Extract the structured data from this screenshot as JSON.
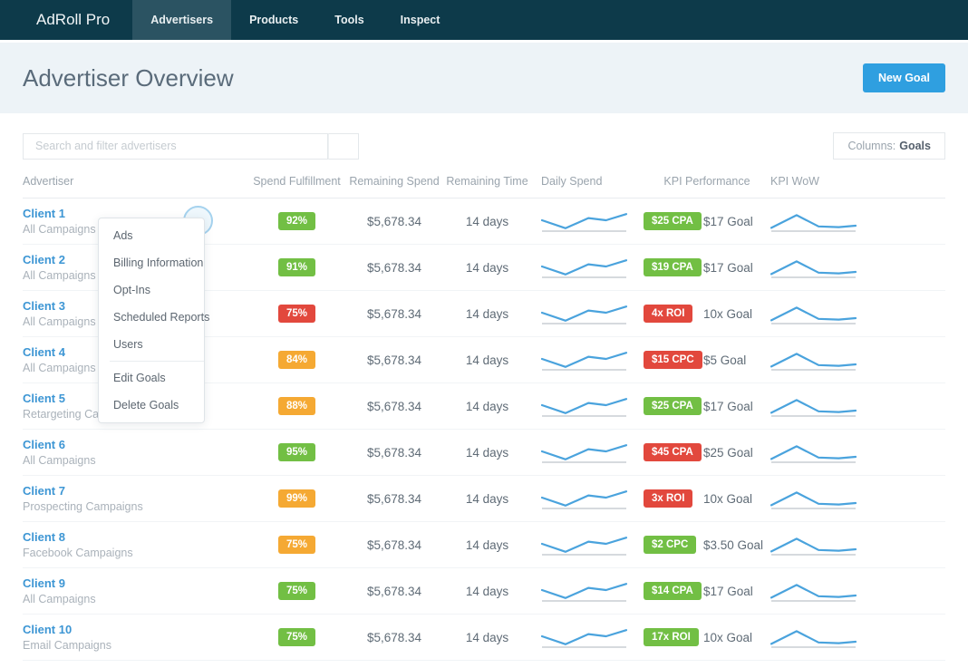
{
  "nav": {
    "brand": "AdRoll Pro",
    "items": [
      {
        "label": "Advertisers",
        "active": true
      },
      {
        "label": "Products",
        "active": false
      },
      {
        "label": "Tools",
        "active": false
      },
      {
        "label": "Inspect",
        "active": false
      }
    ]
  },
  "header": {
    "title": "Advertiser Overview",
    "new_goal_button": "New Goal"
  },
  "toolbar": {
    "search_placeholder": "Search and filter advertisers",
    "columns_label": "Columns:",
    "columns_value": "Goals"
  },
  "table": {
    "headers": [
      "Advertiser",
      "Spend Fulfillment",
      "Remaining Spend",
      "Remaining Time",
      "Daily Spend",
      "KPI Performance",
      "KPI WoW"
    ],
    "rows": [
      {
        "client": "Client 1",
        "campaigns": "All Campaigns",
        "fulfillment": "92%",
        "fulfillment_color": "green",
        "remaining_spend": "$5,678.34",
        "remaining_time": "14 days",
        "kpi": "$25 CPA",
        "kpi_color": "green",
        "goal": "$17 Goal"
      },
      {
        "client": "Client 2",
        "campaigns": "All Campaigns",
        "fulfillment": "91%",
        "fulfillment_color": "green",
        "remaining_spend": "$5,678.34",
        "remaining_time": "14 days",
        "kpi": "$19 CPA",
        "kpi_color": "green",
        "goal": "$17 Goal"
      },
      {
        "client": "Client 3",
        "campaigns": "All Campaigns",
        "fulfillment": "75%",
        "fulfillment_color": "red",
        "remaining_spend": "$5,678.34",
        "remaining_time": "14 days",
        "kpi": "4x ROI",
        "kpi_color": "red",
        "goal": "10x Goal"
      },
      {
        "client": "Client 4",
        "campaigns": "All Campaigns",
        "fulfillment": "84%",
        "fulfillment_color": "orange",
        "remaining_spend": "$5,678.34",
        "remaining_time": "14 days",
        "kpi": "$15 CPC",
        "kpi_color": "red",
        "goal": "$5 Goal"
      },
      {
        "client": "Client 5",
        "campaigns": "Retargeting Campaigns",
        "fulfillment": "88%",
        "fulfillment_color": "orange",
        "remaining_spend": "$5,678.34",
        "remaining_time": "14 days",
        "kpi": "$25 CPA",
        "kpi_color": "green",
        "goal": "$17 Goal"
      },
      {
        "client": "Client 6",
        "campaigns": "All Campaigns",
        "fulfillment": "95%",
        "fulfillment_color": "green",
        "remaining_spend": "$5,678.34",
        "remaining_time": "14 days",
        "kpi": "$45 CPA",
        "kpi_color": "red",
        "goal": "$25 Goal"
      },
      {
        "client": "Client 7",
        "campaigns": "Prospecting Campaigns",
        "fulfillment": "99%",
        "fulfillment_color": "orange",
        "remaining_spend": "$5,678.34",
        "remaining_time": "14 days",
        "kpi": "3x ROI",
        "kpi_color": "red",
        "goal": "10x Goal"
      },
      {
        "client": "Client 8",
        "campaigns": "Facebook Campaigns",
        "fulfillment": "75%",
        "fulfillment_color": "orange",
        "remaining_spend": "$5,678.34",
        "remaining_time": "14 days",
        "kpi": "$2 CPC",
        "kpi_color": "green",
        "goal": "$3.50 Goal"
      },
      {
        "client": "Client 9",
        "campaigns": "All Campaigns",
        "fulfillment": "75%",
        "fulfillment_color": "green",
        "remaining_spend": "$5,678.34",
        "remaining_time": "14 days",
        "kpi": "$14 CPA",
        "kpi_color": "green",
        "goal": "$17 Goal"
      },
      {
        "client": "Client 10",
        "campaigns": "Email Campaigns",
        "fulfillment": "75%",
        "fulfillment_color": "green",
        "remaining_spend": "$5,678.34",
        "remaining_time": "14 days",
        "kpi": "17x ROI",
        "kpi_color": "green",
        "goal": "10x Goal"
      }
    ]
  },
  "context_menu": {
    "items": [
      "Ads",
      "Billing Information",
      "Opt-Ins",
      "Scheduled Reports",
      "Users",
      "Edit Goals",
      "Delete Goals"
    ],
    "divider_before_index": 5
  },
  "colors": {
    "green": "#72bf44",
    "orange": "#f5a933",
    "red": "#e2483d",
    "accent_blue": "#2f9fe0",
    "link_blue": "#3d96d4",
    "sparkline_blue": "#4aa3dd",
    "nav_bg": "#0d3a4a"
  },
  "sparklines": {
    "daily_spend": {
      "type": "line",
      "x": [
        0,
        0.28,
        0.55,
        0.76,
        1
      ],
      "values": [
        0.5,
        0.06,
        0.62,
        0.5,
        0.84
      ]
    },
    "kpi_wow": {
      "type": "line",
      "x": [
        0,
        0.3,
        0.56,
        0.8,
        1
      ],
      "values": [
        0.08,
        0.78,
        0.16,
        0.12,
        0.2
      ]
    }
  }
}
